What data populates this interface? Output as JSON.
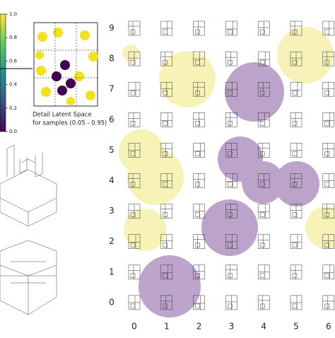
{
  "colorbar": {
    "ticks": [
      "1.0",
      "0.8",
      "0.6",
      "0.4",
      "0.2",
      "0.0"
    ]
  },
  "inset": {
    "caption_lines": [
      "Detail Latent Space",
      "for samples (0.05 - 0.95)"
    ]
  },
  "grid": {
    "row_labels": [
      "9",
      "8",
      "7",
      "6",
      "5",
      "4",
      "3",
      "2",
      "1",
      "0"
    ],
    "col_labels": [
      "0",
      "1",
      "2",
      "3",
      "4",
      "5",
      "6"
    ]
  }
}
